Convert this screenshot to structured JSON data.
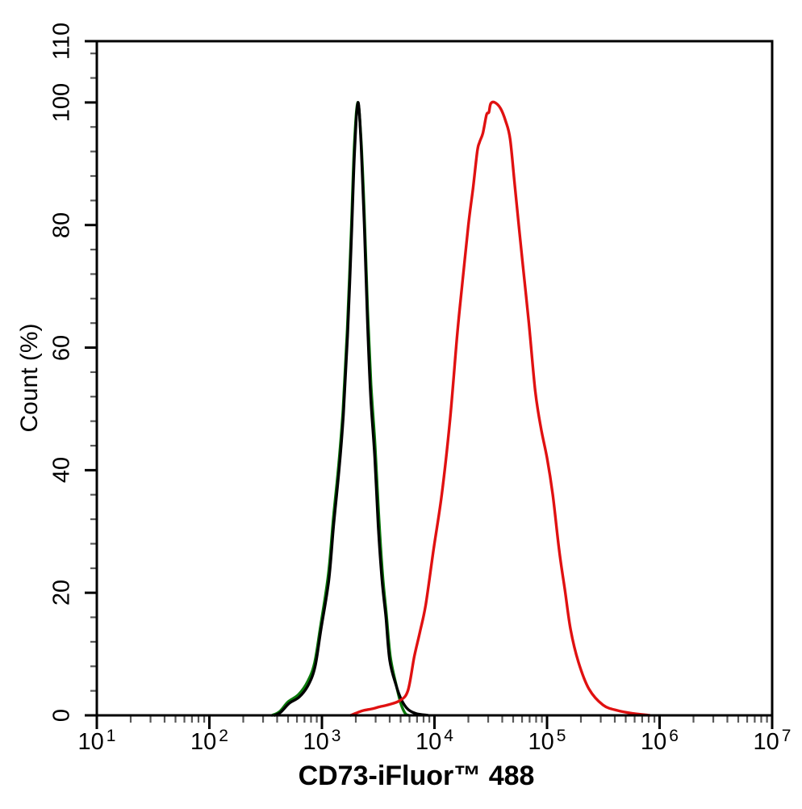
{
  "figure": {
    "background": "#ffffff",
    "axis_color": "#000000",
    "minor_tick_color": "#5a5a5a"
  },
  "chart_data": {
    "type": "line",
    "subtype": "flow-cytometry-histogram",
    "title": "",
    "xlabel": "CD73-iFluor™ 488",
    "ylabel": "Count (%)",
    "x_scale": "log10",
    "x_range": [
      10,
      10000000
    ],
    "y_range": [
      0,
      110
    ],
    "grid": false,
    "legend": "none",
    "x_major_ticks": [
      10,
      100,
      1000,
      10000,
      100000,
      1000000,
      10000000
    ],
    "x_tick_labels": [
      {
        "base": "10",
        "exp": "1"
      },
      {
        "base": "10",
        "exp": "2"
      },
      {
        "base": "10",
        "exp": "3"
      },
      {
        "base": "10",
        "exp": "4"
      },
      {
        "base": "10",
        "exp": "5"
      },
      {
        "base": "10",
        "exp": "6"
      },
      {
        "base": "10",
        "exp": "7"
      }
    ],
    "x_minor_ticks_per_decade": [
      2,
      3,
      4,
      5,
      6,
      7,
      8,
      9
    ],
    "y_major_ticks": [
      0,
      20,
      40,
      60,
      80,
      100,
      110
    ],
    "y_tick_labels": [
      "0",
      "20",
      "40",
      "60",
      "80",
      "100",
      "110"
    ],
    "y_minor_tick_step": 4,
    "series": [
      {
        "name": "green-curve",
        "color": "#0a7a0a",
        "stroke_width": 3.4,
        "points": [
          [
            360,
            0
          ],
          [
            420,
            0.6
          ],
          [
            500,
            2.2
          ],
          [
            620,
            3.4
          ],
          [
            750,
            5.6
          ],
          [
            860,
            8.6
          ],
          [
            970,
            14.5
          ],
          [
            1140,
            23
          ],
          [
            1260,
            32
          ],
          [
            1410,
            41
          ],
          [
            1540,
            50
          ],
          [
            1680,
            63
          ],
          [
            1820,
            79
          ],
          [
            1940,
            93
          ],
          [
            2080,
            100
          ],
          [
            2225,
            94
          ],
          [
            2380,
            82
          ],
          [
            2550,
            66
          ],
          [
            2730,
            54
          ],
          [
            2970,
            44
          ],
          [
            3190,
            33
          ],
          [
            3460,
            23
          ],
          [
            3740,
            16.5
          ],
          [
            4060,
            9.5
          ],
          [
            4620,
            4.6
          ],
          [
            5050,
            1.8
          ],
          [
            5500,
            0.3
          ],
          [
            5900,
            0
          ]
        ]
      },
      {
        "name": "black-curve",
        "color": "#000000",
        "stroke_width": 3.4,
        "points": [
          [
            380,
            0
          ],
          [
            430,
            0.5
          ],
          [
            515,
            2
          ],
          [
            630,
            3
          ],
          [
            760,
            5
          ],
          [
            870,
            8
          ],
          [
            980,
            14
          ],
          [
            1150,
            22
          ],
          [
            1270,
            31
          ],
          [
            1420,
            40
          ],
          [
            1550,
            49
          ],
          [
            1690,
            62
          ],
          [
            1830,
            78
          ],
          [
            1950,
            92
          ],
          [
            2090,
            100
          ],
          [
            2230,
            93
          ],
          [
            2380,
            80
          ],
          [
            2540,
            64
          ],
          [
            2710,
            52
          ],
          [
            2950,
            42
          ],
          [
            3160,
            31
          ],
          [
            3420,
            22
          ],
          [
            3700,
            16
          ],
          [
            4000,
            9
          ],
          [
            4540,
            5
          ],
          [
            5100,
            2.5
          ],
          [
            5800,
            1
          ],
          [
            6850,
            0.3
          ],
          [
            8800,
            0
          ]
        ]
      },
      {
        "name": "red-curve",
        "color": "#e01111",
        "stroke_width": 3.4,
        "points": [
          [
            1800,
            0
          ],
          [
            2100,
            0.5
          ],
          [
            2350,
            0.8
          ],
          [
            2850,
            1.1
          ],
          [
            3260,
            1.4
          ],
          [
            3830,
            1.7
          ],
          [
            4900,
            2.4
          ],
          [
            5800,
            4
          ],
          [
            6600,
            9.5
          ],
          [
            7400,
            13.5
          ],
          [
            8350,
            18
          ],
          [
            9800,
            27
          ],
          [
            11600,
            36
          ],
          [
            13700,
            48
          ],
          [
            15900,
            62
          ],
          [
            17800,
            71
          ],
          [
            20000,
            80
          ],
          [
            22000,
            86
          ],
          [
            24000,
            92
          ],
          [
            25100,
            93.5
          ],
          [
            26900,
            95
          ],
          [
            29000,
            98
          ],
          [
            30400,
            98.4
          ],
          [
            31600,
            99.8
          ],
          [
            34300,
            100
          ],
          [
            38700,
            99
          ],
          [
            42800,
            97
          ],
          [
            47000,
            94
          ],
          [
            52000,
            86
          ],
          [
            60500,
            74
          ],
          [
            69000,
            64
          ],
          [
            78500,
            53
          ],
          [
            88000,
            47
          ],
          [
            100000,
            42
          ],
          [
            112500,
            36
          ],
          [
            128000,
            27
          ],
          [
            144000,
            20.5
          ],
          [
            162000,
            14
          ],
          [
            190000,
            8.7
          ],
          [
            236000,
            4.3
          ],
          [
            314000,
            1.7
          ],
          [
            420000,
            0.8
          ],
          [
            585000,
            0.3
          ],
          [
            815000,
            0
          ]
        ]
      }
    ]
  }
}
